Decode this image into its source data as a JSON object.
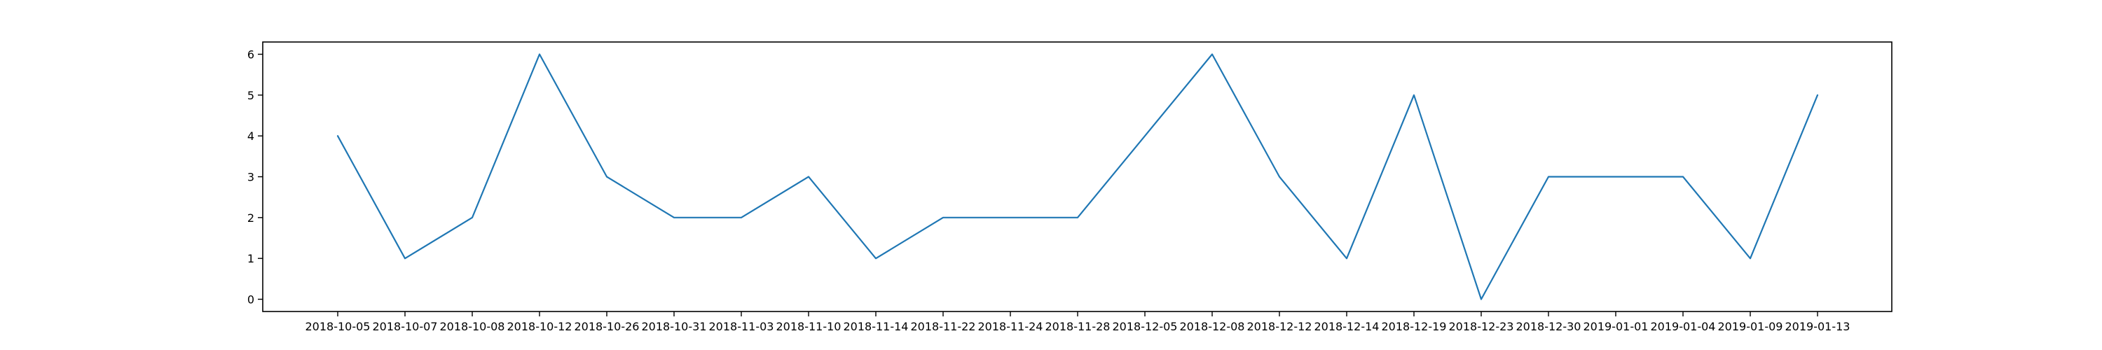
{
  "chart_data": {
    "type": "line",
    "categories": [
      "2018-10-05",
      "2018-10-07",
      "2018-10-08",
      "2018-10-12",
      "2018-10-26",
      "2018-10-31",
      "2018-11-03",
      "2018-11-10",
      "2018-11-14",
      "2018-11-22",
      "2018-11-24",
      "2018-11-28",
      "2018-12-05",
      "2018-12-08",
      "2018-12-12",
      "2018-12-14",
      "2018-12-19",
      "2018-12-23",
      "2018-12-30",
      "2019-01-01",
      "2019-01-04",
      "2019-01-09",
      "2019-01-13"
    ],
    "series": [
      {
        "values": [
          4,
          1,
          2,
          6,
          3,
          2,
          2,
          3,
          1,
          2,
          2,
          2,
          4,
          6,
          3,
          1,
          5,
          0,
          3,
          3,
          3,
          1,
          5
        ],
        "color": "#1f77b4"
      }
    ],
    "yticks": [
      0,
      1,
      2,
      3,
      4,
      5,
      6
    ],
    "ylim": [
      -0.3,
      6.3
    ],
    "grid": false,
    "legend": "none"
  }
}
